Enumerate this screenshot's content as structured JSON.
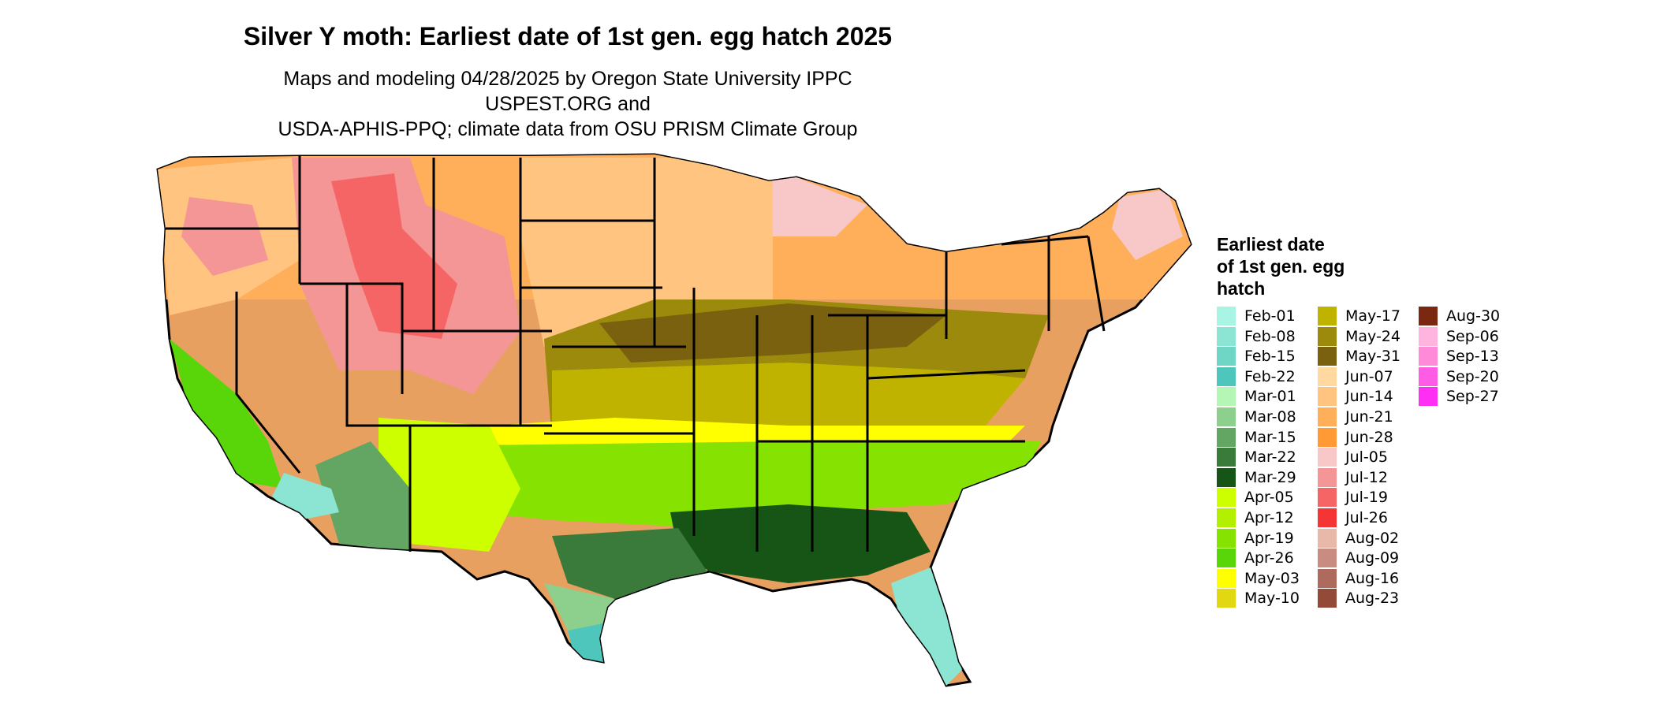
{
  "title": "Silver Y moth: Earliest date of 1st gen. egg hatch 2025",
  "subtitle_line1": "Maps and modeling 04/28/2025 by Oregon State University IPPC USPEST.ORG and",
  "subtitle_line2": "USDA-APHIS-PPQ; climate data from OSU PRISM Climate Group",
  "legend": {
    "title_line1": "Earliest date",
    "title_line2": "of 1st gen. egg",
    "title_line3": "hatch",
    "items": [
      {
        "label": "Feb-01",
        "color": "#a8f5e3"
      },
      {
        "label": "Feb-08",
        "color": "#8ce5d2"
      },
      {
        "label": "Feb-15",
        "color": "#6fd6c6"
      },
      {
        "label": "Feb-22",
        "color": "#4ec6bb"
      },
      {
        "label": "Mar-01",
        "color": "#b5f5b5"
      },
      {
        "label": "Mar-08",
        "color": "#8dcf8d"
      },
      {
        "label": "Mar-15",
        "color": "#63a563"
      },
      {
        "label": "Mar-22",
        "color": "#3a7a3a"
      },
      {
        "label": "Mar-29",
        "color": "#165516"
      },
      {
        "label": "Apr-05",
        "color": "#cdff00"
      },
      {
        "label": "Apr-12",
        "color": "#b2ef00"
      },
      {
        "label": "Apr-19",
        "color": "#86e200"
      },
      {
        "label": "Apr-26",
        "color": "#58d60a"
      },
      {
        "label": "May-03",
        "color": "#ffff00"
      },
      {
        "label": "May-10",
        "color": "#e2d812"
      },
      {
        "label": "May-17",
        "color": "#bfb300"
      },
      {
        "label": "May-24",
        "color": "#9c8a0c"
      },
      {
        "label": "May-31",
        "color": "#7a6110"
      },
      {
        "label": "Jun-07",
        "color": "#ffd9a0"
      },
      {
        "label": "Jun-14",
        "color": "#ffc480"
      },
      {
        "label": "Jun-21",
        "color": "#ffae5a"
      },
      {
        "label": "Jun-28",
        "color": "#ff9a35"
      },
      {
        "label": "Jul-05",
        "color": "#f8c8c8"
      },
      {
        "label": "Jul-12",
        "color": "#f59696"
      },
      {
        "label": "Jul-19",
        "color": "#f56565"
      },
      {
        "label": "Jul-26",
        "color": "#f53535"
      },
      {
        "label": "Aug-02",
        "color": "#e8b9a9"
      },
      {
        "label": "Aug-09",
        "color": "#c98c80"
      },
      {
        "label": "Aug-16",
        "color": "#ad6a5d"
      },
      {
        "label": "Aug-23",
        "color": "#944a38"
      },
      {
        "label": "Aug-30",
        "color": "#7b2810"
      },
      {
        "label": "Sep-06",
        "color": "#ffb3df"
      },
      {
        "label": "Sep-13",
        "color": "#ff8ad7"
      },
      {
        "label": "Sep-20",
        "color": "#ff5ce5"
      },
      {
        "label": "Sep-27",
        "color": "#ff2ef5"
      }
    ]
  }
}
